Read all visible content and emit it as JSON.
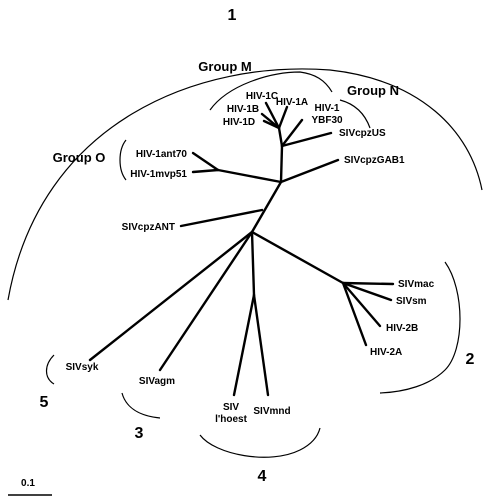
{
  "clusters": {
    "c1": "1",
    "c2": "2",
    "c3": "3",
    "c4": "4",
    "c5": "5"
  },
  "groups": {
    "m": "Group M",
    "n": "Group N",
    "o": "Group O"
  },
  "taxa": {
    "hiv1c": "HIV-1C",
    "hiv1b": "HIV-1B",
    "hiv1a": "HIV-1A",
    "hiv1d": "HIV-1D",
    "hiv1_line1": "HIV-1",
    "hiv1_line2": "YBF30",
    "sivcpzus": "SIVcpzUS",
    "sivcpzgab1": "SIVcpzGAB1",
    "hiv1ant70": "HIV-1ant70",
    "hiv1mvp51": "HIV-1mvp51",
    "sivcpzant": "SIVcpzANT",
    "sivmac": "SIVmac",
    "sivsm": "SIVsm",
    "hiv2b": "HIV-2B",
    "hiv2a": "HIV-2A",
    "sivsyk": "SIVsyk",
    "sivagm": "SIVagm",
    "sivlhoest_line1": "SIV",
    "sivlhoest_line2": "l'hoest",
    "sivmnd": "SIVmnd"
  },
  "scale_bar": {
    "label": "0.1"
  }
}
